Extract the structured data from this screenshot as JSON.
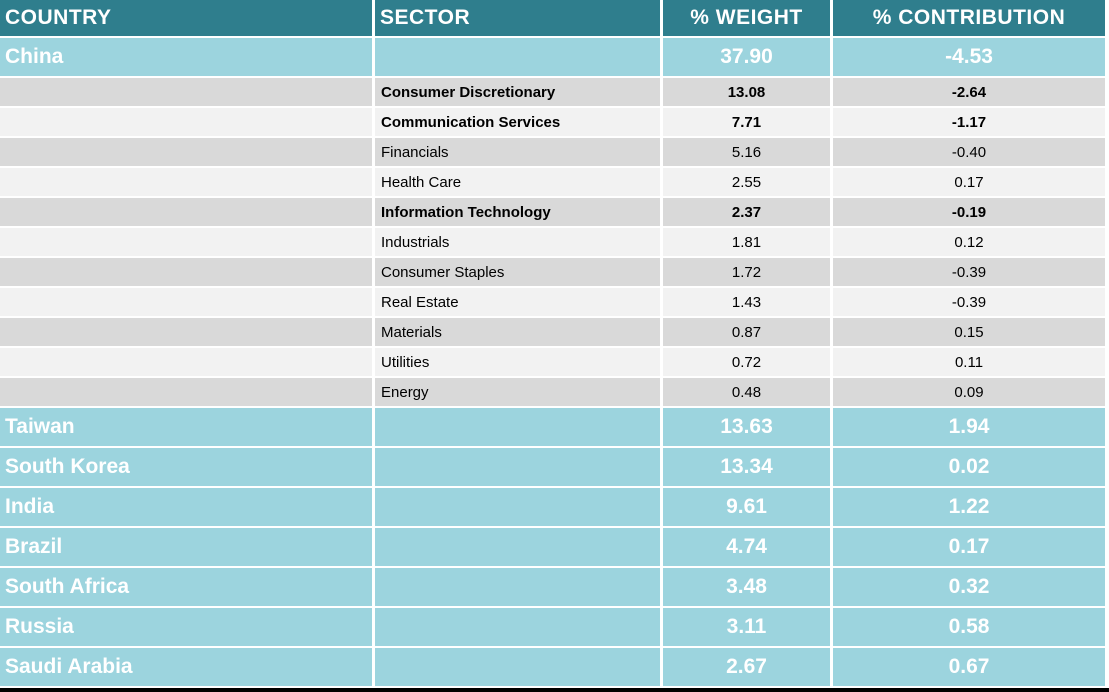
{
  "chart_data": {
    "type": "table",
    "columns": [
      "COUNTRY",
      "SECTOR",
      "% WEIGHT",
      "% CONTRIBUTION"
    ],
    "rows": [
      {
        "row_type": "country",
        "bold": true,
        "country": "China",
        "sector": "",
        "weight": "37.90",
        "contribution": "-4.53"
      },
      {
        "row_type": "sector",
        "bold": true,
        "country": "",
        "sector": "Consumer Discretionary",
        "weight": "13.08",
        "contribution": "-2.64"
      },
      {
        "row_type": "sector",
        "bold": true,
        "country": "",
        "sector": "Communication Services",
        "weight": "7.71",
        "contribution": "-1.17"
      },
      {
        "row_type": "sector",
        "bold": false,
        "country": "",
        "sector": "Financials",
        "weight": "5.16",
        "contribution": "-0.40"
      },
      {
        "row_type": "sector",
        "bold": false,
        "country": "",
        "sector": "Health Care",
        "weight": "2.55",
        "contribution": "0.17"
      },
      {
        "row_type": "sector",
        "bold": true,
        "country": "",
        "sector": "Information Technology",
        "weight": "2.37",
        "contribution": "-0.19"
      },
      {
        "row_type": "sector",
        "bold": false,
        "country": "",
        "sector": "Industrials",
        "weight": "1.81",
        "contribution": "0.12"
      },
      {
        "row_type": "sector",
        "bold": false,
        "country": "",
        "sector": "Consumer Staples",
        "weight": "1.72",
        "contribution": "-0.39"
      },
      {
        "row_type": "sector",
        "bold": false,
        "country": "",
        "sector": "Real Estate",
        "weight": "1.43",
        "contribution": "-0.39"
      },
      {
        "row_type": "sector",
        "bold": false,
        "country": "",
        "sector": "Materials",
        "weight": "0.87",
        "contribution": "0.15"
      },
      {
        "row_type": "sector",
        "bold": false,
        "country": "",
        "sector": "Utilities",
        "weight": "0.72",
        "contribution": "0.11"
      },
      {
        "row_type": "sector",
        "bold": false,
        "country": "",
        "sector": "Energy",
        "weight": "0.48",
        "contribution": "0.09"
      },
      {
        "row_type": "country",
        "bold": true,
        "country": "Taiwan",
        "sector": "",
        "weight": "13.63",
        "contribution": "1.94"
      },
      {
        "row_type": "country",
        "bold": true,
        "country": "South Korea",
        "sector": "",
        "weight": "13.34",
        "contribution": "0.02"
      },
      {
        "row_type": "country",
        "bold": true,
        "country": "India",
        "sector": "",
        "weight": "9.61",
        "contribution": "1.22"
      },
      {
        "row_type": "country",
        "bold": true,
        "country": "Brazil",
        "sector": "",
        "weight": "4.74",
        "contribution": "0.17"
      },
      {
        "row_type": "country",
        "bold": true,
        "country": "South Africa",
        "sector": "",
        "weight": "3.48",
        "contribution": "0.32"
      },
      {
        "row_type": "country",
        "bold": true,
        "country": "Russia",
        "sector": "",
        "weight": "3.11",
        "contribution": "0.58"
      },
      {
        "row_type": "country",
        "bold": true,
        "country": "Saudi Arabia",
        "sector": "",
        "weight": "2.67",
        "contribution": "0.67"
      }
    ]
  },
  "colors": {
    "header_bg": "#2F7E8D",
    "country_bg": "#9CD4DE",
    "shade_dark": "#D9D9D9",
    "shade_light": "#F2F2F2",
    "header_text": "#FFFFFF",
    "country_text": "#FFFFFF",
    "sector_text": "#000000",
    "bottom_bar": "#000000"
  }
}
